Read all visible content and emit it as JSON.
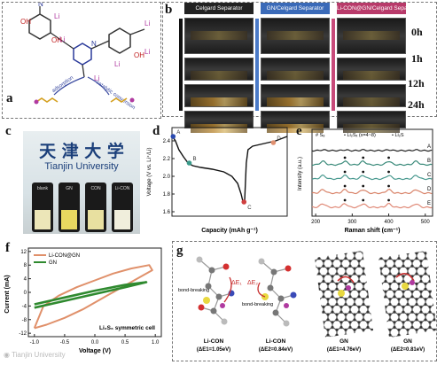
{
  "figure": {
    "panels": {
      "a": {
        "label": "a",
        "labels": [
          "Li",
          "Li",
          "Li",
          "Li",
          "Li",
          "Li",
          "adsorption",
          "catalytic conversion"
        ]
      },
      "b": {
        "label": "b",
        "columns": [
          "Celgard Separator",
          "GN/Celgard Separator",
          "Li-CON@GN/Celgard Separator"
        ],
        "times": [
          "0h",
          "1h",
          "12h",
          "24h"
        ]
      },
      "c": {
        "label": "c",
        "title_cn": "天 津 大 学",
        "title_en": "Tianjin University",
        "vials": [
          "blank",
          "GN",
          "CON",
          "Li-CON"
        ]
      },
      "d": {
        "label": "d",
        "points": [
          "A",
          "B",
          "C",
          "D"
        ]
      },
      "e": {
        "label": "e",
        "legend": [
          "# S₈",
          "• Li₂Sₓ (x=4~8)",
          "• Li₂S"
        ],
        "traces": [
          "A",
          "B",
          "C",
          "D",
          "E"
        ]
      },
      "f": {
        "label": "f",
        "legend": [
          "Li-CON@GN",
          "GN"
        ],
        "annotation": "Li₂S₆ symmetric cell"
      },
      "g": {
        "label": "g",
        "structures": [
          {
            "name": "Li-CON",
            "energy": "(ΔE1=1.05eV)",
            "bond": "bond-breaking",
            "delta": "ΔE₁"
          },
          {
            "name": "Li-CON",
            "energy": "(ΔE2=0.84eV)",
            "bond": "bond-breaking",
            "delta": "ΔE₂"
          },
          {
            "name": "GN",
            "energy": "(ΔE1=4.76eV)"
          },
          {
            "name": "GN",
            "energy": "(ΔE2=0.81eV)"
          }
        ]
      }
    },
    "watermark": "Tianjin University"
  },
  "chart_data": [
    {
      "type": "line",
      "panel": "d",
      "xlabel": "Capacity (mAh g⁻¹)",
      "ylabel": "Voltage (V vs. Li⁺/Li)",
      "yticks": [
        "2.4",
        "2.2",
        "2.0",
        "1.8",
        "1.6"
      ],
      "ylim": [
        1.55,
        2.55
      ],
      "series": [
        {
          "points": [
            [
              0.0,
              2.46
            ],
            [
              0.03,
              2.4
            ],
            [
              0.06,
              2.3
            ],
            [
              0.1,
              2.22
            ],
            [
              0.14,
              2.15
            ],
            [
              0.18,
              2.12
            ],
            [
              0.25,
              2.1
            ],
            [
              0.35,
              2.08
            ],
            [
              0.45,
              2.05
            ],
            [
              0.52,
              2.0
            ],
            [
              0.57,
              1.92
            ],
            [
              0.6,
              1.8
            ],
            [
              0.615,
              1.72
            ],
            [
              0.63,
              1.7
            ],
            [
              0.645,
              2.15
            ],
            [
              0.66,
              2.3
            ],
            [
              0.7,
              2.34
            ],
            [
              0.8,
              2.37
            ],
            [
              0.9,
              2.4
            ],
            [
              1.0,
              2.45
            ]
          ]
        }
      ],
      "point_labels": [
        {
          "label": "A",
          "x": 0.01,
          "y": 2.45
        },
        {
          "label": "B",
          "x": 0.15,
          "y": 2.15
        },
        {
          "label": "C",
          "x": 0.625,
          "y": 1.71
        },
        {
          "label": "D",
          "x": 0.88,
          "y": 2.38
        }
      ]
    },
    {
      "type": "line",
      "panel": "e",
      "xlabel": "Raman shift (cm⁻¹)",
      "ylabel": "Intensity (a.u.)",
      "xticks": [
        "200",
        "300",
        "400",
        "500"
      ],
      "xlim": [
        190,
        520
      ],
      "series": [
        {
          "name": "A",
          "color": "#222222",
          "offset": 4
        },
        {
          "name": "B",
          "color": "#3a8a7a",
          "offset": 3
        },
        {
          "name": "C",
          "color": "#4a9a90",
          "offset": 2
        },
        {
          "name": "D",
          "color": "#d9846a",
          "offset": 1
        },
        {
          "name": "E",
          "color": "#e08a78",
          "offset": 0
        }
      ]
    },
    {
      "type": "line",
      "panel": "f",
      "xlabel": "Voltage (V)",
      "ylabel": "Current (mA)",
      "xticks": [
        "-1.0",
        "-0.5",
        "0.0",
        "0.5",
        "1.0"
      ],
      "yticks": [
        "12",
        "8",
        "4",
        "0",
        "-4",
        "-8",
        "-12"
      ],
      "xlim": [
        -1.1,
        1.1
      ],
      "ylim": [
        -13,
        13
      ],
      "series": [
        {
          "name": "Li-CON@GN",
          "color": "#e0906a",
          "points": [
            [
              -1.0,
              -10.5
            ],
            [
              -0.8,
              -9.5
            ],
            [
              -0.5,
              -7.5
            ],
            [
              -0.2,
              -5
            ],
            [
              0.2,
              -1
            ],
            [
              0.5,
              2
            ],
            [
              0.8,
              5
            ],
            [
              0.95,
              6.5
            ],
            [
              0.9,
              8
            ],
            [
              0.6,
              7
            ],
            [
              0.3,
              5.5
            ],
            [
              0.0,
              3.5
            ],
            [
              -0.3,
              1.5
            ],
            [
              -0.6,
              -1
            ],
            [
              -0.85,
              -4
            ],
            [
              -1.0,
              -10.5
            ]
          ]
        },
        {
          "name": "GN",
          "color": "#2f8a2f",
          "points": [
            [
              -1.0,
              -4.5
            ],
            [
              -0.5,
              -2.5
            ],
            [
              0.0,
              -0.5
            ],
            [
              0.5,
              1.5
            ],
            [
              0.85,
              3
            ],
            [
              0.5,
              2.2
            ],
            [
              0.0,
              0.5
            ],
            [
              -0.5,
              -1.5
            ],
            [
              -1.0,
              -3.5
            ]
          ]
        }
      ]
    }
  ]
}
